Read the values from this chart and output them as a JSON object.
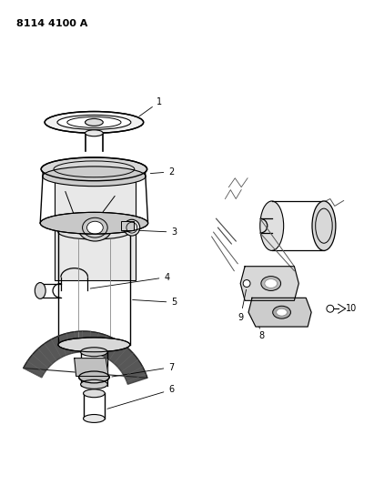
{
  "title": "8114 4100 A",
  "background_color": "#ffffff",
  "line_color": "#000000",
  "figure_width": 4.11,
  "figure_height": 5.33,
  "dpi": 100
}
